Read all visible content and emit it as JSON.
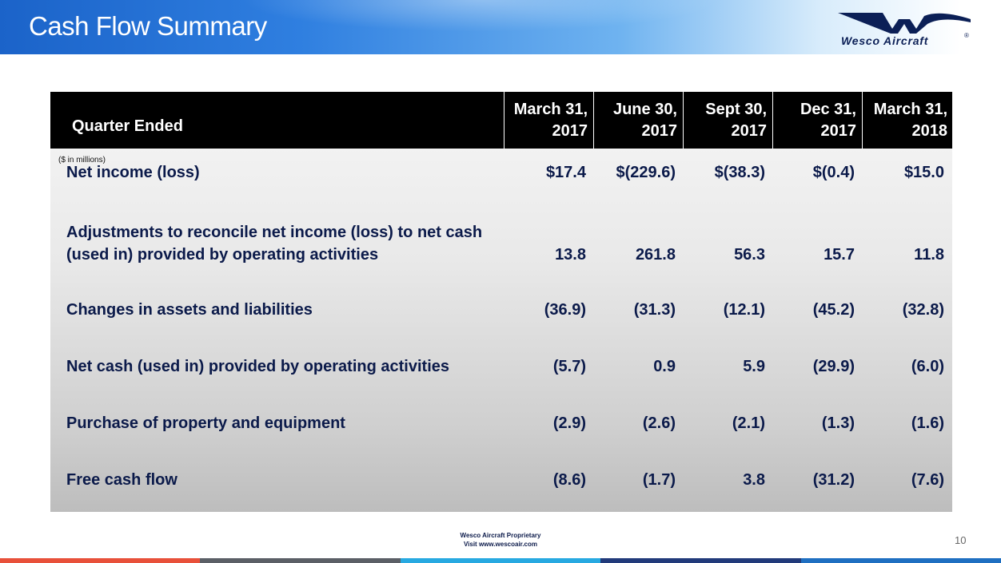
{
  "slide": {
    "title": "Cash Flow Summary",
    "page_number": "10"
  },
  "logo": {
    "text": "Wesco Aircraft",
    "registered": "®"
  },
  "table": {
    "header_label": "Quarter Ended",
    "units_note": "($ in millions)",
    "columns": [
      {
        "line1": "March 31,",
        "line2": "2017"
      },
      {
        "line1": "June 30,",
        "line2": "2017"
      },
      {
        "line1": "Sept 30,",
        "line2": "2017"
      },
      {
        "line1": "Dec 31,",
        "line2": "2017"
      },
      {
        "line1": "March 31,",
        "line2": "2018"
      }
    ],
    "rows": [
      {
        "label_line1": "Net income (loss)",
        "label_line2": "",
        "values": [
          "$17.4",
          "$(229.6)",
          "$(38.3)",
          "$(0.4)",
          "$15.0"
        ]
      },
      {
        "label_line1": "Adjustments to reconcile net income (loss) to net cash",
        "label_line2": "(used in) provided by operating activities",
        "values": [
          "13.8",
          "261.8",
          "56.3",
          "15.7",
          "11.8"
        ]
      },
      {
        "label_line1": "Changes in assets and liabilities",
        "label_line2": "",
        "values": [
          "(36.9)",
          "(31.3)",
          "(12.1)",
          "(45.2)",
          "(32.8)"
        ]
      },
      {
        "label_line1": "Net cash (used in) provided by operating activities",
        "label_line2": "",
        "values": [
          "(5.7)",
          "0.9",
          "5.9",
          "(29.9)",
          "(6.0)"
        ]
      },
      {
        "label_line1": "Purchase of property and equipment",
        "label_line2": "",
        "values": [
          "(2.9)",
          "(2.6)",
          "(2.1)",
          "(1.3)",
          "(1.6)"
        ]
      },
      {
        "label_line1": "Free cash flow",
        "label_line2": "",
        "values": [
          "(8.6)",
          "(1.7)",
          "3.8",
          "(31.2)",
          "(7.6)"
        ]
      }
    ]
  },
  "footer": {
    "line1": "Wesco Aircraft Proprietary",
    "line2": "Visit www.wescoair.com"
  },
  "colors": {
    "bottom_bar": [
      "#e8503a",
      "#5b5f66",
      "#27a9e1",
      "#213a7a",
      "#1f6fc1"
    ]
  }
}
